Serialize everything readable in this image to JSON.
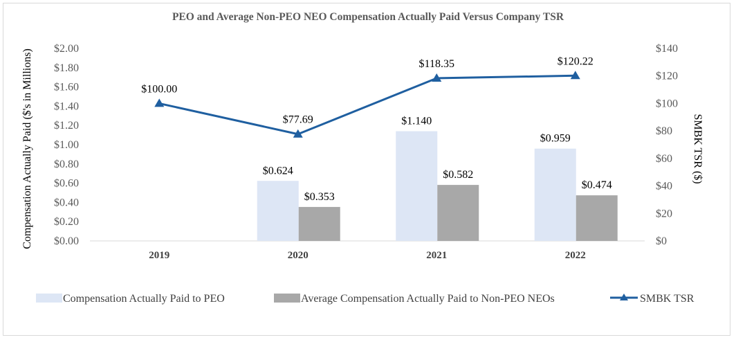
{
  "chart_data": {
    "type": "bar+line",
    "title": "PEO and Average Non-PEO NEO Compensation Actually Paid Versus Company TSR",
    "categories": [
      "2019",
      "2020",
      "2021",
      "2022"
    ],
    "ylabel_left": "Compensation Actually Paid ($'s in Millions)",
    "ylabel_right": "SMBK TSR ($)",
    "ylim_left": [
      0,
      2.0
    ],
    "ylim_right": [
      0,
      140
    ],
    "left_ticks": [
      "$0.00",
      "$0.20",
      "$0.40",
      "$0.60",
      "$0.80",
      "$1.00",
      "$1.20",
      "$1.40",
      "$1.60",
      "$1.80",
      "$2.00"
    ],
    "right_ticks": [
      "$0",
      "$20",
      "$40",
      "$60",
      "$80",
      "$100",
      "$120",
      "$140"
    ],
    "series": [
      {
        "name": "Compensation Actually Paid to PEO",
        "kind": "bar",
        "axis": "left",
        "color": "#dde6f5",
        "values": [
          null,
          0.624,
          1.14,
          0.959
        ],
        "labels": [
          "",
          "$0.624",
          "$1.140",
          "$0.959"
        ]
      },
      {
        "name": "Average Compensation Actually Paid to Non-PEO NEOs",
        "kind": "bar",
        "axis": "left",
        "color": "#a8a8a8",
        "values": [
          null,
          0.353,
          0.582,
          0.474
        ],
        "labels": [
          "",
          "$0.353",
          "$0.582",
          "$0.474"
        ]
      },
      {
        "name": "SMBK TSR",
        "kind": "line",
        "axis": "right",
        "color": "#1f5fa0",
        "values": [
          100.0,
          77.69,
          118.35,
          120.22
        ],
        "labels": [
          "$100.00",
          "$77.69",
          "$118.35",
          "$120.22"
        ]
      }
    ],
    "legend": "bottom"
  }
}
